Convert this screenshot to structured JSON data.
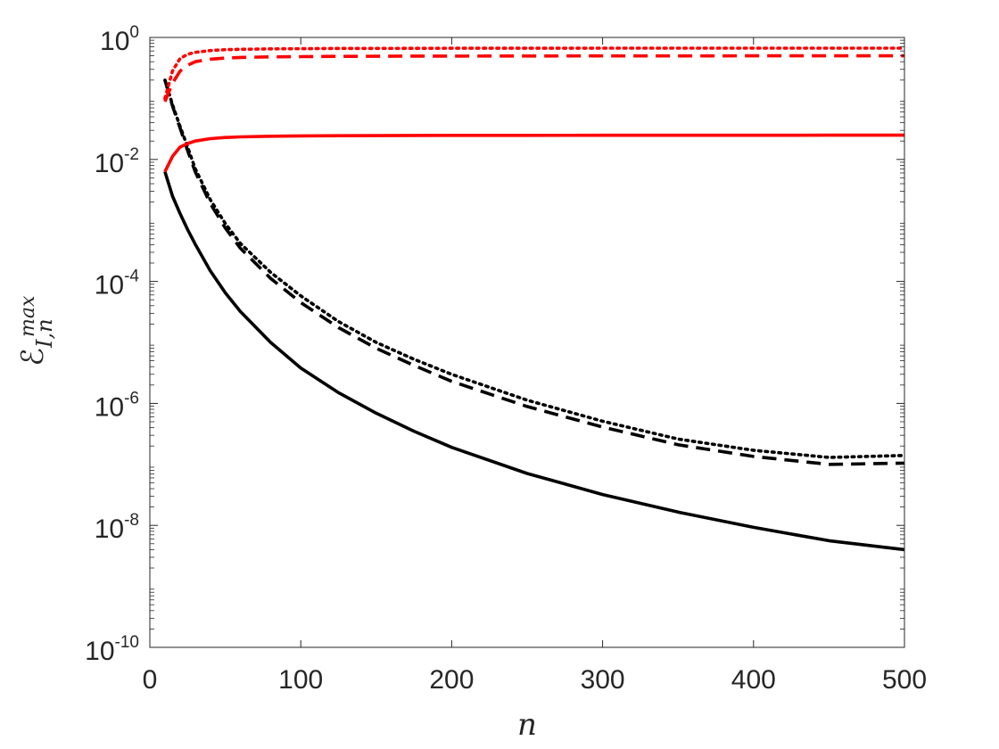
{
  "chart_data": {
    "type": "line",
    "title": "",
    "xlabel": "n",
    "ylabel": {
      "base": "ℰ",
      "superscript": "max",
      "subscript": "I,n"
    },
    "xlim": [
      0,
      500
    ],
    "ylim": [
      1e-10,
      1
    ],
    "yscale": "log",
    "grid": false,
    "x_ticks": [
      {
        "value": 0,
        "label": "0"
      },
      {
        "value": 100,
        "label": "100"
      },
      {
        "value": 200,
        "label": "200"
      },
      {
        "value": 300,
        "label": "300"
      },
      {
        "value": 400,
        "label": "400"
      },
      {
        "value": 500,
        "label": "500"
      }
    ],
    "y_ticks": [
      {
        "value": 1e-10,
        "base": "10",
        "exp": "-10"
      },
      {
        "value": 1e-08,
        "base": "10",
        "exp": "-8"
      },
      {
        "value": 1e-06,
        "base": "10",
        "exp": "-6"
      },
      {
        "value": 0.0001,
        "base": "10",
        "exp": "-4"
      },
      {
        "value": 0.01,
        "base": "10",
        "exp": "-2"
      },
      {
        "value": 1,
        "base": "10",
        "exp": "0"
      }
    ],
    "x": [
      10,
      15,
      20,
      25,
      30,
      40,
      50,
      60,
      80,
      100,
      125,
      150,
      175,
      200,
      250,
      300,
      350,
      400,
      450,
      500
    ],
    "series": [
      {
        "color": "#000000",
        "dash": "solid",
        "values": [
          0.0063,
          0.0025,
          0.0013,
          0.00071,
          0.00041,
          0.00015,
          6.5e-05,
          3.2e-05,
          1e-05,
          3.8e-06,
          1.5e-06,
          6.9e-07,
          3.5e-07,
          1.9e-07,
          7.1e-08,
          3.2e-08,
          1.65e-08,
          9.3e-09,
          5.6e-09,
          4e-09
        ]
      },
      {
        "color": "#000000",
        "dash": "dashed",
        "values": [
          0.2,
          0.075,
          0.033,
          0.014,
          0.0063,
          0.0019,
          0.00075,
          0.00035,
          0.000112,
          4.5e-05,
          1.75e-05,
          8e-06,
          4.2e-06,
          2.3e-06,
          8.9e-07,
          4.1e-07,
          2.1e-07,
          1.35e-07,
          1e-07,
          1.05e-07
        ]
      },
      {
        "color": "#000000",
        "dash": "dotted",
        "values": [
          0.2,
          0.079,
          0.035,
          0.016,
          0.0071,
          0.0022,
          0.00089,
          0.00042,
          0.000141,
          5.8e-05,
          2.2e-05,
          1e-05,
          5.3e-06,
          3e-06,
          1.13e-06,
          5.1e-07,
          2.6e-07,
          1.7e-07,
          1.3e-07,
          1.4e-07
        ]
      },
      {
        "color": "#ff0000",
        "dash": "solid",
        "values": [
          0.0063,
          0.0112,
          0.0159,
          0.0182,
          0.02,
          0.0219,
          0.0229,
          0.0234,
          0.024,
          0.0243,
          0.0245,
          0.0246,
          0.0247,
          0.0248,
          0.0248,
          0.0249,
          0.0249,
          0.0249,
          0.025,
          0.025
        ]
      },
      {
        "color": "#ff0000",
        "dash": "dashed",
        "values": [
          0.089,
          0.178,
          0.28,
          0.35,
          0.4,
          0.44,
          0.46,
          0.47,
          0.48,
          0.485,
          0.49,
          0.492,
          0.494,
          0.495,
          0.497,
          0.498,
          0.498,
          0.499,
          0.499,
          0.5
        ]
      },
      {
        "color": "#ff0000",
        "dash": "dotted",
        "values": [
          0.1,
          0.282,
          0.45,
          0.53,
          0.57,
          0.61,
          0.63,
          0.64,
          0.65,
          0.655,
          0.66,
          0.662,
          0.664,
          0.665,
          0.666,
          0.667,
          0.667,
          0.668,
          0.668,
          0.668
        ]
      }
    ]
  }
}
